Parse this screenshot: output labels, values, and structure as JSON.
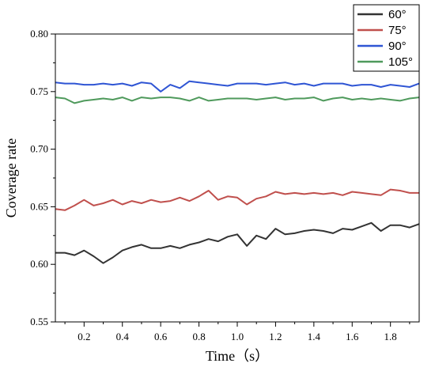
{
  "chart_data": {
    "type": "line",
    "title": "",
    "xlabel": "Time（s）",
    "ylabel": "Coverage rate",
    "xlim": [
      0.05,
      1.95
    ],
    "ylim": [
      0.55,
      0.8
    ],
    "xticks": [
      0.2,
      0.4,
      0.6,
      0.8,
      1.0,
      1.2,
      1.4,
      1.6,
      1.8
    ],
    "xtick_labels": [
      "0.2",
      "0.4",
      "0.6",
      "0.8",
      "1.0",
      "1.2",
      "1.4",
      "1.6",
      "1.8"
    ],
    "yticks": [
      0.55,
      0.6,
      0.65,
      0.7,
      0.75,
      0.8
    ],
    "ytick_labels": [
      "0.55",
      "0.60",
      "0.65",
      "0.70",
      "0.75",
      "0.80"
    ],
    "grid": false,
    "legend_position": "top-right",
    "x": [
      0.05,
      0.1,
      0.15,
      0.2,
      0.25,
      0.3,
      0.35,
      0.4,
      0.45,
      0.5,
      0.55,
      0.6,
      0.65,
      0.7,
      0.75,
      0.8,
      0.85,
      0.9,
      0.95,
      1.0,
      1.05,
      1.1,
      1.15,
      1.2,
      1.25,
      1.3,
      1.35,
      1.4,
      1.45,
      1.5,
      1.55,
      1.6,
      1.65,
      1.7,
      1.75,
      1.8,
      1.85,
      1.9,
      1.95
    ],
    "series": [
      {
        "name": "60°",
        "color": "#333333",
        "values": [
          0.61,
          0.61,
          0.608,
          0.612,
          0.607,
          0.601,
          0.606,
          0.612,
          0.615,
          0.617,
          0.614,
          0.614,
          0.616,
          0.614,
          0.617,
          0.619,
          0.622,
          0.62,
          0.624,
          0.626,
          0.616,
          0.625,
          0.622,
          0.631,
          0.626,
          0.627,
          0.629,
          0.63,
          0.629,
          0.627,
          0.631,
          0.63,
          0.633,
          0.636,
          0.629,
          0.634,
          0.634,
          0.632,
          0.635
        ]
      },
      {
        "name": "75°",
        "color": "#c0504d",
        "values": [
          0.648,
          0.647,
          0.651,
          0.656,
          0.651,
          0.653,
          0.656,
          0.652,
          0.655,
          0.653,
          0.656,
          0.654,
          0.655,
          0.658,
          0.655,
          0.659,
          0.664,
          0.656,
          0.659,
          0.658,
          0.652,
          0.657,
          0.659,
          0.663,
          0.661,
          0.662,
          0.661,
          0.662,
          0.661,
          0.662,
          0.66,
          0.663,
          0.662,
          0.661,
          0.66,
          0.665,
          0.664,
          0.662,
          0.662
        ]
      },
      {
        "name": "90°",
        "color": "#2f55d4",
        "values": [
          0.758,
          0.757,
          0.757,
          0.756,
          0.756,
          0.757,
          0.756,
          0.757,
          0.755,
          0.758,
          0.757,
          0.75,
          0.756,
          0.753,
          0.759,
          0.758,
          0.757,
          0.756,
          0.755,
          0.757,
          0.757,
          0.757,
          0.756,
          0.757,
          0.758,
          0.756,
          0.757,
          0.755,
          0.757,
          0.757,
          0.757,
          0.755,
          0.756,
          0.756,
          0.754,
          0.756,
          0.755,
          0.754,
          0.757
        ]
      },
      {
        "name": "105°",
        "color": "#4f9a5c",
        "values": [
          0.745,
          0.744,
          0.74,
          0.742,
          0.743,
          0.744,
          0.743,
          0.745,
          0.742,
          0.745,
          0.744,
          0.745,
          0.745,
          0.744,
          0.742,
          0.745,
          0.742,
          0.743,
          0.744,
          0.744,
          0.744,
          0.743,
          0.744,
          0.745,
          0.743,
          0.744,
          0.744,
          0.745,
          0.742,
          0.744,
          0.745,
          0.743,
          0.744,
          0.743,
          0.744,
          0.743,
          0.742,
          0.744,
          0.745
        ]
      }
    ]
  }
}
